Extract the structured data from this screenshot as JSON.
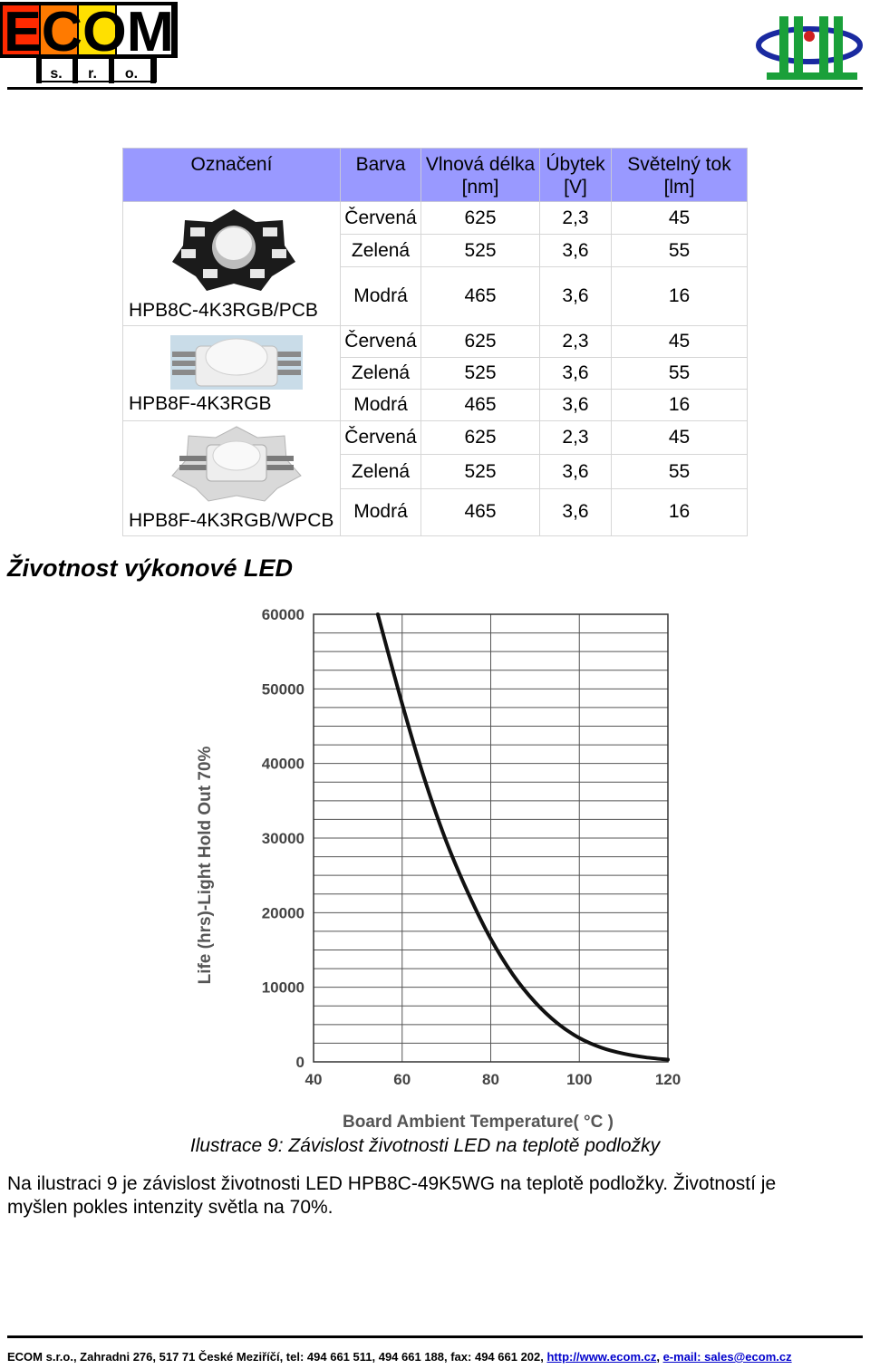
{
  "header": {
    "logo_left_text": "ECOM",
    "logo_left_sub": [
      "s.",
      "r.",
      "o."
    ],
    "logo_right_name": "JL-logo-icon"
  },
  "table": {
    "headers": [
      "Označení",
      "Barva",
      "Vlnová délka [nm]",
      "Úbytek [V]",
      "Světelný tok [lm]"
    ],
    "groups": [
      {
        "model": "HPB8C-4K3RGB/PCB",
        "rows": [
          [
            "Červená",
            "625",
            "2,3",
            "45"
          ],
          [
            "Zelená",
            "525",
            "3,6",
            "55"
          ],
          [
            "Modrá",
            "465",
            "3,6",
            "16"
          ]
        ]
      },
      {
        "model": "HPB8F-4K3RGB",
        "rows": [
          [
            "Červená",
            "625",
            "2,3",
            "45"
          ],
          [
            "Zelená",
            "525",
            "3,6",
            "55"
          ],
          [
            "Modrá",
            "465",
            "3,6",
            "16"
          ]
        ]
      },
      {
        "model": "HPB8F-4K3RGB/WPCB",
        "rows": [
          [
            "Červená",
            "625",
            "2,3",
            "45"
          ],
          [
            "Zelená",
            "525",
            "3,6",
            "55"
          ],
          [
            "Modrá",
            "465",
            "3,6",
            "16"
          ]
        ]
      }
    ]
  },
  "section_title": "Životnost výkonové LED",
  "chart_data": {
    "type": "line",
    "xlabel": "Board Ambient Temperature( °C )",
    "ylabel": "Life (hrs)-Light Hold Out  70%",
    "xlim": [
      40,
      120
    ],
    "ylim": [
      0,
      60000
    ],
    "xticks": [
      40,
      60,
      80,
      100,
      120
    ],
    "yticks": [
      0,
      10000,
      20000,
      30000,
      40000,
      50000,
      60000
    ],
    "grid": true,
    "series": [
      {
        "x": [
          54.5,
          60,
          65,
          70,
          75,
          80,
          85,
          90,
          95,
          100,
          105,
          110,
          115,
          120
        ],
        "y": [
          60000,
          48000,
          38000,
          29500,
          22500,
          16500,
          11700,
          8000,
          5200,
          3200,
          1900,
          1100,
          600,
          300
        ]
      }
    ]
  },
  "caption": "Ilustrace 9: Závislost životnosti LED na teplotě podložky",
  "paragraph": " Na ilustraci 9 je závislost životnosti LED HPB8C-49K5WG na teplotě podložky. Životností je myšlen pokles intenzity světla na 70%.",
  "footer": {
    "text": "ECOM s.r.o., Zahradni 276, 517 71 České Meziříčí, tel: 494 661 511, 494 661 188, fax: 494 661 202, ",
    "web": "http://www.ecom.cz",
    "sep": ", ",
    "email": "e-mail: sales@ecom.cz"
  }
}
